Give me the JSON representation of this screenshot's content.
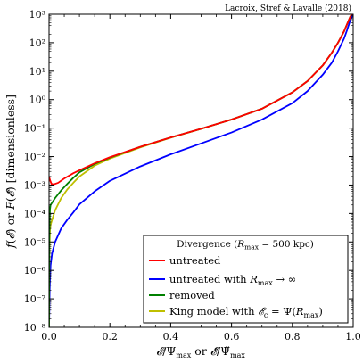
{
  "chart_data": {
    "type": "line",
    "credit": "Lacroix, Stref & Lavalle (2018)",
    "xlabel": "𝓔/Ψ_max or 𝓔̃/Ψ̃_max",
    "ylabel": "f(𝓔) or F(𝓔̃) [dimensionless]",
    "xlim": [
      0,
      1
    ],
    "ylim": [
      1e-08,
      1000
    ],
    "yscale": "log",
    "x_ticks": [
      "0.0",
      "0.2",
      "0.4",
      "0.6",
      "0.8",
      "1.0"
    ],
    "y_ticks": [
      "10⁻⁸",
      "10⁻⁷",
      "10⁻⁶",
      "10⁻⁵",
      "10⁻⁴",
      "10⁻³",
      "10⁻²",
      "10⁻¹",
      "10⁰",
      "10¹",
      "10²",
      "10³"
    ],
    "grid": false,
    "legend": {
      "placement": "lower-right",
      "title": "Divergence (R_max = 500 kpc)"
    },
    "series": [
      {
        "name": "untreated",
        "color": "#ff0000",
        "points": [
          [
            0.0,
            0.002
          ],
          [
            0.003,
            0.0015
          ],
          [
            0.008,
            0.0011
          ],
          [
            0.015,
            0.00105
          ],
          [
            0.03,
            0.0012
          ],
          [
            0.05,
            0.0017
          ],
          [
            0.08,
            0.0026
          ],
          [
            0.1,
            0.0033
          ],
          [
            0.15,
            0.0058
          ],
          [
            0.2,
            0.0095
          ],
          [
            0.3,
            0.022
          ],
          [
            0.4,
            0.047
          ],
          [
            0.5,
            0.095
          ],
          [
            0.6,
            0.2
          ],
          [
            0.7,
            0.48
          ],
          [
            0.8,
            1.8
          ],
          [
            0.85,
            4.5
          ],
          [
            0.9,
            16
          ],
          [
            0.93,
            45
          ],
          [
            0.95,
            100
          ],
          [
            0.97,
            250
          ],
          [
            0.98,
            450
          ],
          [
            0.99,
            800
          ],
          [
            1.0,
            1200
          ]
        ]
      },
      {
        "name": "untreated with R_max → ∞",
        "color": "#0000ff",
        "points": [
          [
            0.0,
            1e-08
          ],
          [
            0.002,
            2e-07
          ],
          [
            0.005,
            1.5e-06
          ],
          [
            0.01,
            4e-06
          ],
          [
            0.02,
            1e-05
          ],
          [
            0.04,
            3e-05
          ],
          [
            0.06,
            6e-05
          ],
          [
            0.08,
            0.00011
          ],
          [
            0.1,
            0.00021
          ],
          [
            0.15,
            0.0006
          ],
          [
            0.2,
            0.0014
          ],
          [
            0.3,
            0.0045
          ],
          [
            0.4,
            0.012
          ],
          [
            0.5,
            0.029
          ],
          [
            0.6,
            0.07
          ],
          [
            0.7,
            0.2
          ],
          [
            0.8,
            0.75
          ],
          [
            0.85,
            2
          ],
          [
            0.9,
            7.5
          ],
          [
            0.93,
            20
          ],
          [
            0.95,
            50
          ],
          [
            0.97,
            140
          ],
          [
            0.98,
            280
          ],
          [
            0.99,
            600
          ],
          [
            1.0,
            1000
          ]
        ]
      },
      {
        "name": "removed",
        "color": "#008000",
        "points": [
          [
            0.0,
            1e-08
          ],
          [
            0.001,
            2e-05
          ],
          [
            0.003,
            0.00014
          ],
          [
            0.005,
            0.0002
          ],
          [
            0.01,
            0.00024
          ],
          [
            0.02,
            0.00035
          ],
          [
            0.04,
            0.00065
          ],
          [
            0.06,
            0.0011
          ],
          [
            0.08,
            0.0018
          ],
          [
            0.1,
            0.0028
          ],
          [
            0.15,
            0.0055
          ],
          [
            0.2,
            0.0092
          ],
          [
            0.3,
            0.022
          ],
          [
            0.4,
            0.047
          ],
          [
            0.5,
            0.095
          ],
          [
            0.6,
            0.2
          ],
          [
            0.7,
            0.48
          ],
          [
            0.8,
            1.8
          ],
          [
            0.85,
            4.5
          ],
          [
            0.9,
            16
          ],
          [
            0.93,
            45
          ],
          [
            0.95,
            100
          ],
          [
            0.97,
            250
          ],
          [
            0.98,
            450
          ],
          [
            0.99,
            800
          ],
          [
            1.0,
            1200
          ]
        ]
      },
      {
        "name": "King model with 𝓔_c = Ψ(R_max)",
        "color": "#bfbf00",
        "points": [
          [
            0.0,
            1e-08
          ],
          [
            0.001,
            5e-06
          ],
          [
            0.003,
            2.5e-05
          ],
          [
            0.005,
            4e-05
          ],
          [
            0.01,
            6e-05
          ],
          [
            0.02,
            0.00013
          ],
          [
            0.04,
            0.00035
          ],
          [
            0.06,
            0.0007
          ],
          [
            0.08,
            0.0012
          ],
          [
            0.1,
            0.002
          ],
          [
            0.15,
            0.0048
          ],
          [
            0.2,
            0.0085
          ],
          [
            0.3,
            0.021
          ],
          [
            0.4,
            0.046
          ],
          [
            0.5,
            0.094
          ],
          [
            0.6,
            0.2
          ],
          [
            0.7,
            0.48
          ],
          [
            0.8,
            1.8
          ],
          [
            0.85,
            4.5
          ],
          [
            0.9,
            16
          ],
          [
            0.93,
            45
          ],
          [
            0.95,
            100
          ],
          [
            0.97,
            250
          ],
          [
            0.98,
            450
          ],
          [
            0.99,
            800
          ],
          [
            1.0,
            1200
          ]
        ]
      }
    ]
  }
}
